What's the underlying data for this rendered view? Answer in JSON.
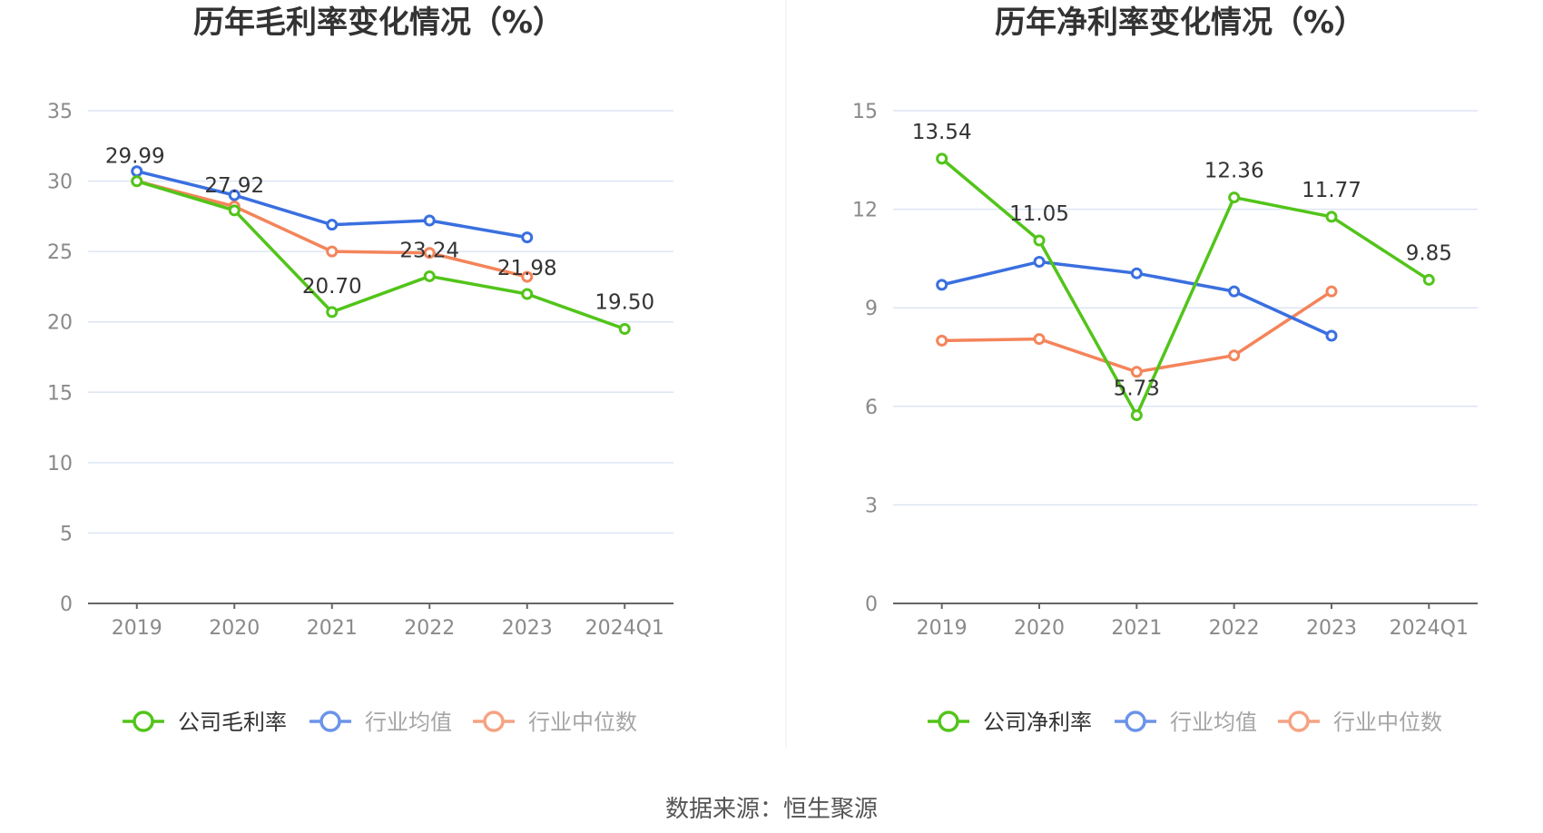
{
  "source_text": "数据来源：恒生聚源",
  "colors": {
    "company": "#52c41a",
    "industry_avg": "#3a6fe0",
    "industry_median": "#f4845a",
    "grid": "#dde6f3",
    "axis": "#666666"
  },
  "chart_data": [
    {
      "type": "line",
      "title": "历年毛利率变化情况（%）",
      "categories": [
        "2019",
        "2020",
        "2021",
        "2022",
        "2023",
        "2024Q1"
      ],
      "ylim": [
        0,
        35
      ],
      "yticks": [
        0,
        5,
        10,
        15,
        20,
        25,
        30,
        35
      ],
      "grid": true,
      "legend_position": "bottom",
      "series": [
        {
          "name": "公司毛利率",
          "color": "#52c41a",
          "labeled": true,
          "values": [
            29.99,
            27.92,
            20.7,
            23.24,
            21.98,
            19.5
          ],
          "labels": [
            "29.99",
            "27.92",
            "20.70",
            "23.24",
            "21.98",
            "19.50"
          ]
        },
        {
          "name": "行业均值",
          "color": "#3a6fe0",
          "labeled": false,
          "values": [
            30.7,
            29.0,
            26.9,
            27.2,
            26.0,
            null
          ]
        },
        {
          "name": "行业中位数",
          "color": "#f4845a",
          "labeled": false,
          "values": [
            30.0,
            28.2,
            25.0,
            24.9,
            23.2,
            null
          ]
        }
      ]
    },
    {
      "type": "line",
      "title": "历年净利率变化情况（%）",
      "categories": [
        "2019",
        "2020",
        "2021",
        "2022",
        "2023",
        "2024Q1"
      ],
      "ylim": [
        0,
        15
      ],
      "yticks": [
        0,
        3,
        6,
        9,
        12,
        15
      ],
      "grid": true,
      "legend_position": "bottom",
      "series": [
        {
          "name": "公司净利率",
          "color": "#52c41a",
          "labeled": true,
          "values": [
            13.54,
            11.05,
            5.73,
            12.36,
            11.77,
            9.85
          ],
          "labels": [
            "13.54",
            "11.05",
            "5.73",
            "12.36",
            "11.77",
            "9.85"
          ]
        },
        {
          "name": "行业均值",
          "color": "#3a6fe0",
          "labeled": false,
          "values": [
            9.7,
            10.4,
            10.05,
            9.5,
            8.15,
            null
          ]
        },
        {
          "name": "行业中位数",
          "color": "#f4845a",
          "labeled": false,
          "values": [
            8.0,
            8.05,
            7.05,
            7.55,
            9.5,
            null
          ]
        }
      ]
    }
  ]
}
